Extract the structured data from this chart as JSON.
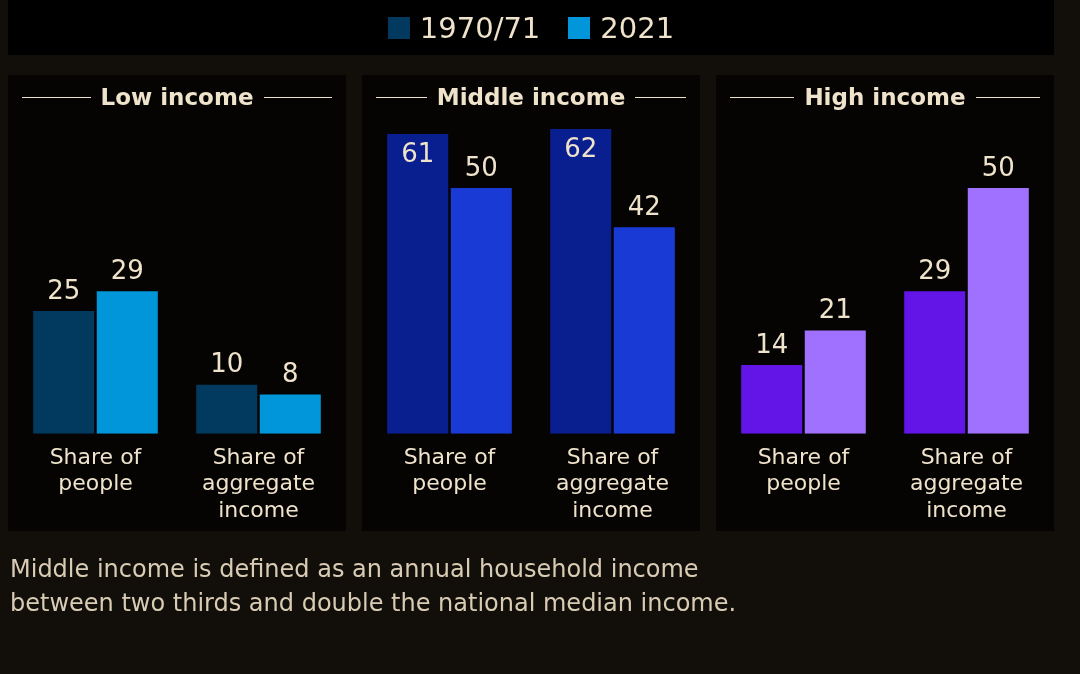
{
  "chart_data": [
    {
      "type": "bar",
      "title": "Low income",
      "categories": [
        "Share of people",
        "Share of aggregate income"
      ],
      "series": [
        {
          "name": "1970/71",
          "color": "#013a5e",
          "values": [
            25,
            10
          ]
        },
        {
          "name": "2021",
          "color": "#0096d9",
          "values": [
            29,
            8
          ]
        }
      ],
      "tick_labels": "x",
      "grid": false,
      "legend": "top",
      "data_labels": true
    },
    {
      "type": "bar",
      "title": "Middle income",
      "categories": [
        "Share of people",
        "Share of aggregate income"
      ],
      "series": [
        {
          "color": "#0a1f8f",
          "values": [
            61,
            62
          ]
        },
        {
          "color": "#1a3ad6",
          "values": [
            50,
            42
          ]
        }
      ],
      "tick_labels": "x",
      "grid": false,
      "data_labels": true,
      "annotations": [
        "Middle income is defined as an annual household income between two thirds and double the national median income."
      ]
    },
    {
      "type": "bar",
      "title": "High income",
      "categories": [
        "Share of people",
        "Share of aggregate income"
      ],
      "series": [
        {
          "color": "#6314e6",
          "values": [
            14,
            29
          ]
        },
        {
          "color": "#a070ff",
          "values": [
            21,
            50
          ]
        }
      ],
      "tick_labels": "x",
      "grid": false,
      "data_labels": true
    }
  ]
}
